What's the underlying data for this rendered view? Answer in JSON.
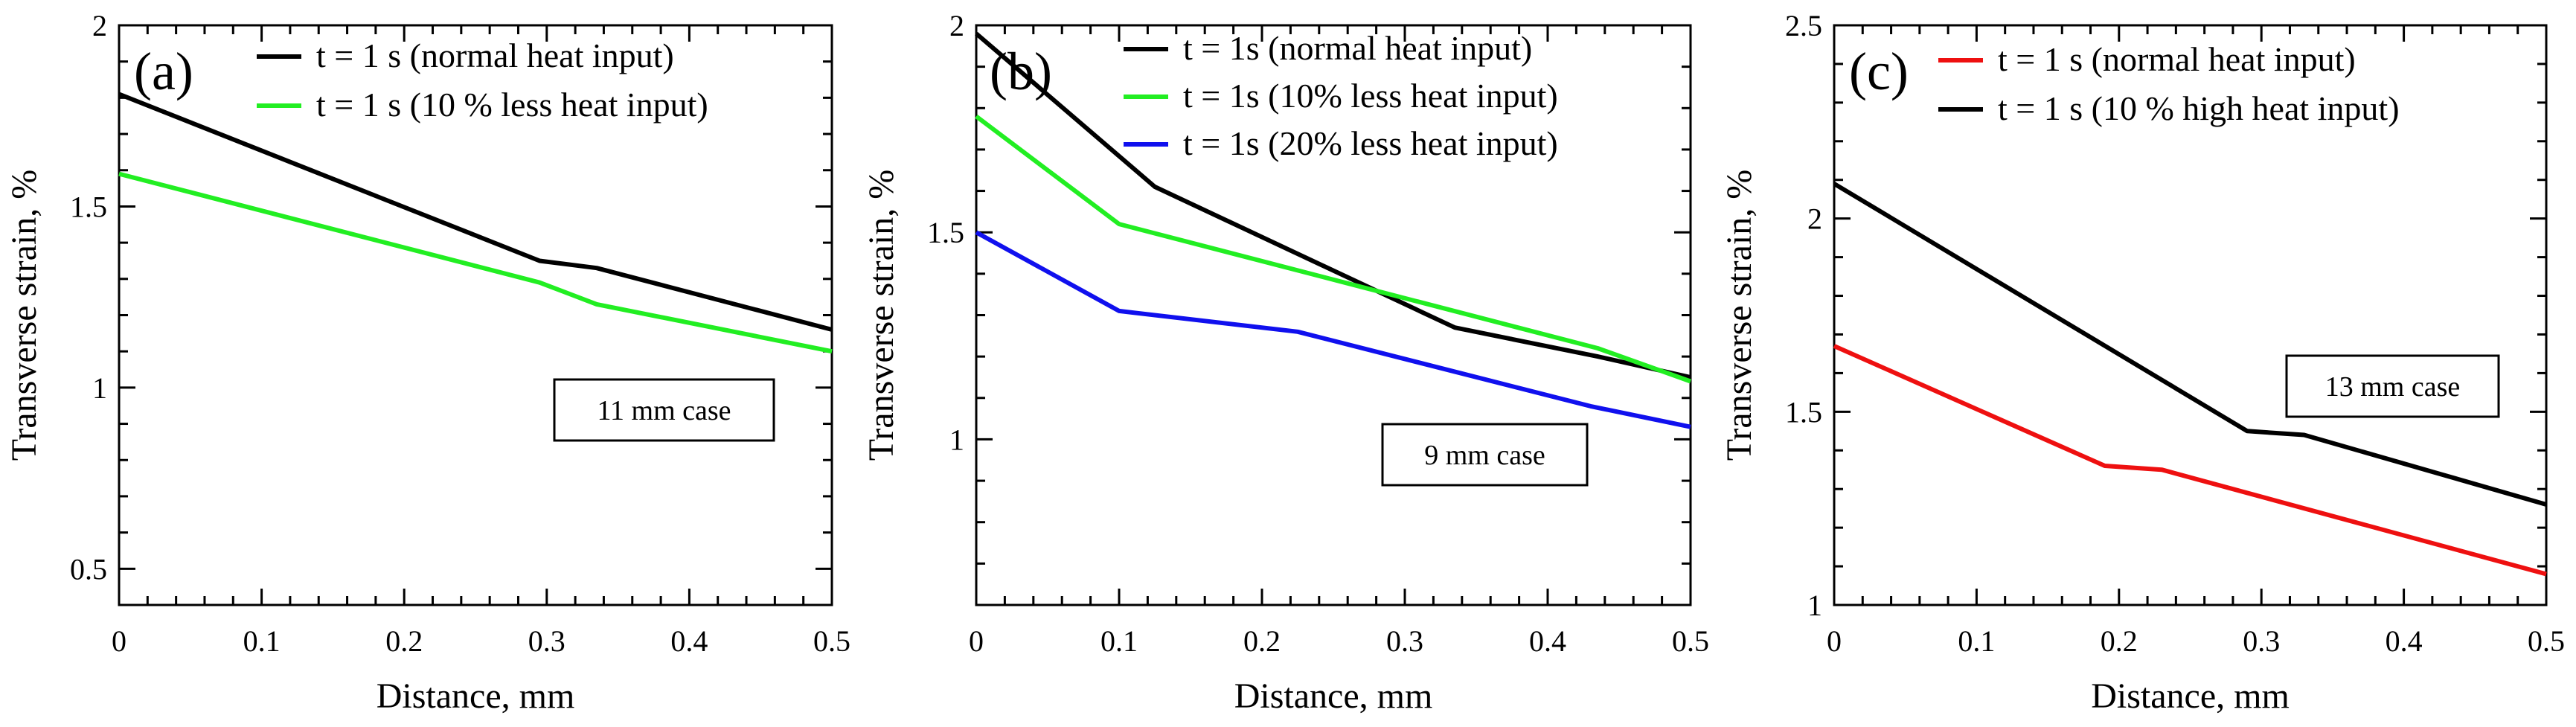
{
  "chart_data": [
    {
      "type": "line",
      "panel_label": "(a)",
      "xlabel": "Distance, mm",
      "ylabel": "Transverse strain, %",
      "xlim": [
        0,
        0.5
      ],
      "ylim": [
        0.4,
        2
      ],
      "x_ticks": [
        "0",
        "0.1",
        "0.2",
        "0.3",
        "0.4",
        "0.5"
      ],
      "y_ticks": [
        "0.5",
        "1",
        "1.5",
        "2"
      ],
      "legend_position": "top-right",
      "annotation": "11 mm case",
      "series": [
        {
          "name": "t = 1 s (normal heat input)",
          "color": "#000000",
          "x": [
            0,
            0.295,
            0.335,
            0.5
          ],
          "y": [
            1.81,
            1.35,
            1.33,
            1.16
          ]
        },
        {
          "name": "t = 1 s (10 % less heat input)",
          "color": "#22ee22",
          "x": [
            0,
            0.295,
            0.335,
            0.5
          ],
          "y": [
            1.59,
            1.29,
            1.23,
            1.1
          ]
        }
      ]
    },
    {
      "type": "line",
      "panel_label": "(b)",
      "xlabel": "Distance, mm",
      "ylabel": "Transverse strain, %",
      "xlim": [
        0,
        0.5
      ],
      "ylim": [
        0.6,
        2
      ],
      "x_ticks": [
        "0",
        "0.1",
        "0.2",
        "0.3",
        "0.4",
        "0.5"
      ],
      "y_ticks": [
        "1",
        "1.5",
        "2"
      ],
      "legend_position": "top-right",
      "annotation": "9 mm case",
      "series": [
        {
          "name": "t = 1s (normal heat input)",
          "color": "#000000",
          "x": [
            0,
            0.125,
            0.335,
            0.435,
            0.5
          ],
          "y": [
            1.98,
            1.61,
            1.27,
            1.2,
            1.15
          ]
        },
        {
          "name": "t = 1s (10% less heat input)",
          "color": "#22ee22",
          "x": [
            0,
            0.1,
            0.435,
            0.5
          ],
          "y": [
            1.78,
            1.52,
            1.22,
            1.14
          ]
        },
        {
          "name": "t = 1s (20% less heat input)",
          "color": "#1010ee",
          "x": [
            0,
            0.1,
            0.225,
            0.43,
            0.5
          ],
          "y": [
            1.5,
            1.31,
            1.26,
            1.08,
            1.03
          ]
        }
      ]
    },
    {
      "type": "line",
      "panel_label": "(c)",
      "xlabel": "Distance, mm",
      "ylabel": "Transverse strain, %",
      "xlim": [
        0,
        0.5
      ],
      "ylim": [
        1,
        2.5
      ],
      "x_ticks": [
        "0",
        "0.1",
        "0.2",
        "0.3",
        "0.4",
        "0.5"
      ],
      "y_ticks": [
        "1",
        "1.5",
        "2",
        "2.5"
      ],
      "legend_position": "top-right",
      "annotation": "13 mm case",
      "series": [
        {
          "name": "t = 1 s (normal heat input)",
          "color": "#ee1010",
          "x": [
            0,
            0.19,
            0.23,
            0.5
          ],
          "y": [
            1.67,
            1.36,
            1.35,
            1.08
          ]
        },
        {
          "name": "t = 1 s (10 % high heat input)",
          "color": "#000000",
          "x": [
            0,
            0.29,
            0.33,
            0.5
          ],
          "y": [
            2.09,
            1.45,
            1.44,
            1.26
          ]
        }
      ]
    }
  ]
}
